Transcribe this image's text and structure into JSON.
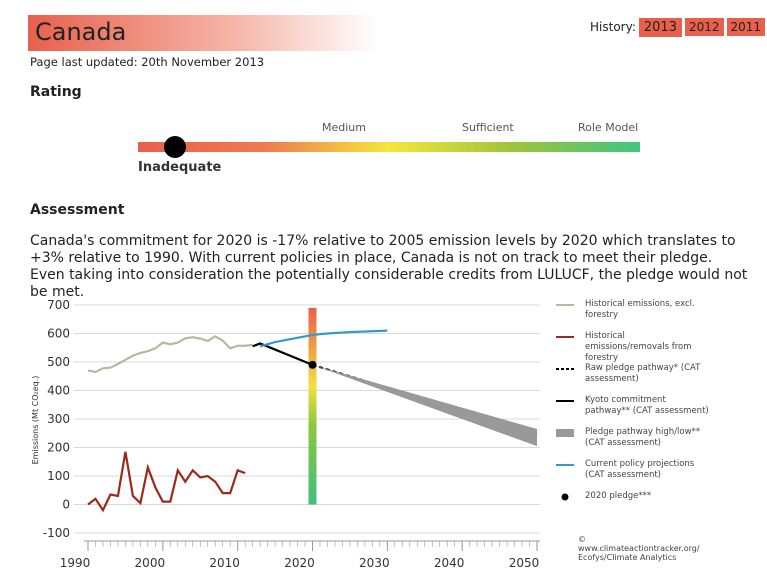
{
  "header": {
    "title": "Canada",
    "updated": "Page last updated: 20th November 2013",
    "history_label": "History:",
    "history": [
      "2013",
      "2012",
      "2011"
    ]
  },
  "rating": {
    "title": "Rating",
    "levels": [
      "Medium",
      "Sufficient",
      "Role Model"
    ],
    "current": "Inadequate"
  },
  "assessment": {
    "title": "Assessment",
    "text": "Canada's commitment for 2020 is -17% relative to 2005 emission levels by 2020 which translates to +3% relative to 1990. With current policies in place, Canada is not on track to meet their pledge. Even taking into consideration the potentially considerable credits from LULUCF, the pledge would not be met."
  },
  "chart_data": {
    "type": "line",
    "y_label": "Emissions (Mt CO₂eq.)",
    "xlim": [
      1990,
      2050
    ],
    "xticks": [
      1990,
      2000,
      2010,
      2020,
      2030,
      2040,
      2050
    ],
    "ylim": [
      -100,
      700
    ],
    "yticks": [
      -100,
      0,
      100,
      200,
      300,
      400,
      500,
      600,
      700
    ],
    "grid": true,
    "series": [
      {
        "name": "Historical emissions, excl. forestry",
        "color": "#b8b8a0",
        "style": "solid",
        "x": [
          1990,
          1991,
          1992,
          1993,
          1994,
          1995,
          1996,
          1997,
          1998,
          1999,
          2000,
          2001,
          2002,
          2003,
          2004,
          2005,
          2006,
          2007,
          2008,
          2009,
          2010,
          2011,
          2012
        ],
        "values": [
          470,
          465,
          478,
          480,
          493,
          508,
          522,
          532,
          538,
          548,
          568,
          562,
          568,
          583,
          587,
          582,
          574,
          590,
          575,
          548,
          557,
          557,
          560
        ]
      },
      {
        "name": "Historical emissions/removals from forestry",
        "color": "#9b2a1c",
        "style": "solid",
        "x": [
          1990,
          1991,
          1992,
          1993,
          1994,
          1995,
          1996,
          1997,
          1998,
          1999,
          2000,
          2001,
          2002,
          2003,
          2004,
          2005,
          2006,
          2007,
          2008,
          2009,
          2010,
          2011
        ],
        "values": [
          0,
          20,
          -20,
          35,
          30,
          185,
          30,
          5,
          130,
          60,
          10,
          10,
          120,
          80,
          120,
          95,
          100,
          80,
          40,
          40,
          120,
          110
        ]
      },
      {
        "name": "Raw pledge pathway* (CAT assessment)",
        "color": "#000000",
        "style": "dashed",
        "x": [
          2020,
          2050
        ],
        "values": [
          490,
          250
        ]
      },
      {
        "name": "Kyoto commitment pathway** (CAT assessment)",
        "color": "#000000",
        "style": "solid",
        "x": [
          2012,
          2013,
          2020
        ],
        "values": [
          555,
          565,
          490
        ]
      },
      {
        "name": "Pledge pathway high/low** (CAT assessment)",
        "color": "#999999",
        "style": "range",
        "x": [
          2020,
          2050
        ],
        "high": [
          490,
          265
        ],
        "low": [
          490,
          205
        ]
      },
      {
        "name": "Current policy projections (CAT assessment)",
        "color": "#3399cc",
        "style": "solid",
        "x": [
          2013,
          2015,
          2020,
          2022,
          2025,
          2030
        ],
        "values": [
          555,
          570,
          595,
          600,
          605,
          610
        ]
      },
      {
        "name": "2020 pledge***",
        "color": "#000000",
        "style": "point",
        "x": [
          2020
        ],
        "values": [
          490
        ]
      }
    ],
    "credit": "© www.climateactiontracker.org/ Ecofys/Climate Analytics"
  }
}
